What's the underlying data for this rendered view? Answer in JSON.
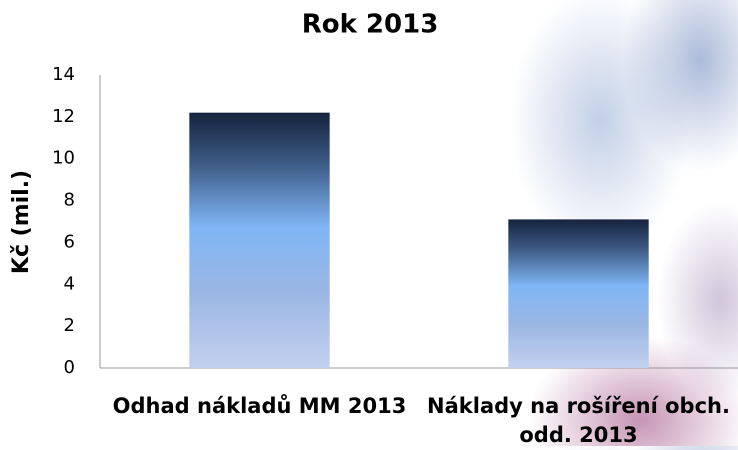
{
  "chart_data": {
    "type": "bar",
    "title": "Rok 2013",
    "y_label": "Kč (mil.)",
    "categories": [
      "Odhad nákladů MM 2013",
      "Náklady na rošíření obch. odd. 2013"
    ],
    "values": [
      12.2,
      7.1
    ],
    "color": "#7fb6f5",
    "ylim": [
      0,
      14
    ],
    "yticks": [
      0,
      2,
      4,
      6,
      8,
      10,
      12,
      14
    ],
    "grid": false
  }
}
